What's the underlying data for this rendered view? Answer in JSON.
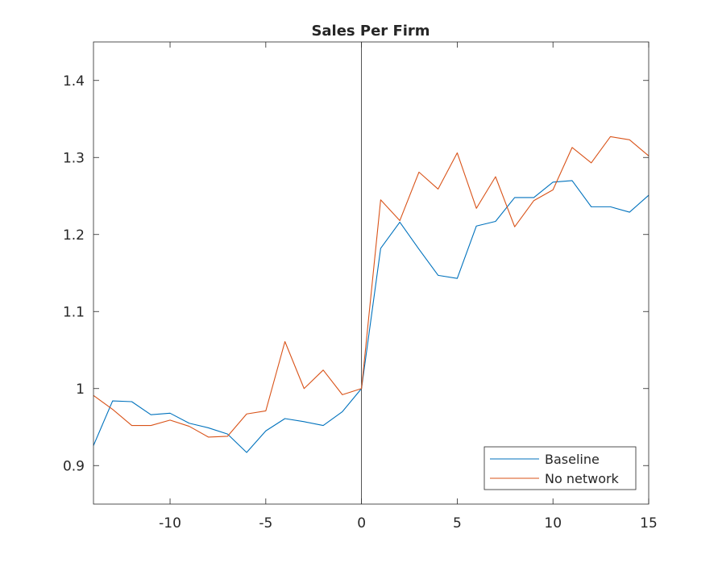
{
  "chart_data": {
    "type": "line",
    "title": "Sales Per Firm",
    "xlabel": "",
    "ylabel": "",
    "xlim": [
      -14,
      15
    ],
    "ylim": [
      0.85,
      1.45
    ],
    "xticks": [
      -10,
      -5,
      0,
      5,
      10,
      15
    ],
    "yticks": [
      0.9,
      1,
      1.1,
      1.2,
      1.3,
      1.4
    ],
    "xtick_labels": [
      "-10",
      "-5",
      "0",
      "5",
      "10",
      "15"
    ],
    "ytick_labels": [
      "0.9",
      "1",
      "1.1",
      "1.2",
      "1.3",
      "1.4"
    ],
    "grid": false,
    "vertical_line_x": 0,
    "legend_position": "bottom-right",
    "x": [
      -14,
      -13,
      -12,
      -11,
      -10,
      -9,
      -8,
      -7,
      -6,
      -5,
      -4,
      -3,
      -2,
      -1,
      0,
      1,
      2,
      3,
      4,
      5,
      6,
      7,
      8,
      9,
      10,
      11,
      12,
      13,
      14,
      15
    ],
    "series": [
      {
        "name": "Baseline",
        "color": "#0072BD",
        "values": [
          0.926,
          0.984,
          0.983,
          0.966,
          0.968,
          0.955,
          0.949,
          0.941,
          0.917,
          0.945,
          0.961,
          0.957,
          0.952,
          0.97,
          1.0,
          1.182,
          1.216,
          1.181,
          1.147,
          1.143,
          1.211,
          1.217,
          1.248,
          1.248,
          1.268,
          1.27,
          1.236,
          1.236,
          1.229,
          1.251
        ]
      },
      {
        "name": "No network",
        "color": "#D95319",
        "values": [
          0.991,
          0.973,
          0.952,
          0.952,
          0.959,
          0.951,
          0.937,
          0.938,
          0.967,
          0.971,
          1.061,
          1.0,
          1.024,
          0.992,
          1.0,
          1.245,
          1.218,
          1.281,
          1.259,
          1.306,
          1.234,
          1.275,
          1.21,
          1.244,
          1.258,
          1.313,
          1.293,
          1.327,
          1.323,
          1.302
        ]
      }
    ]
  }
}
